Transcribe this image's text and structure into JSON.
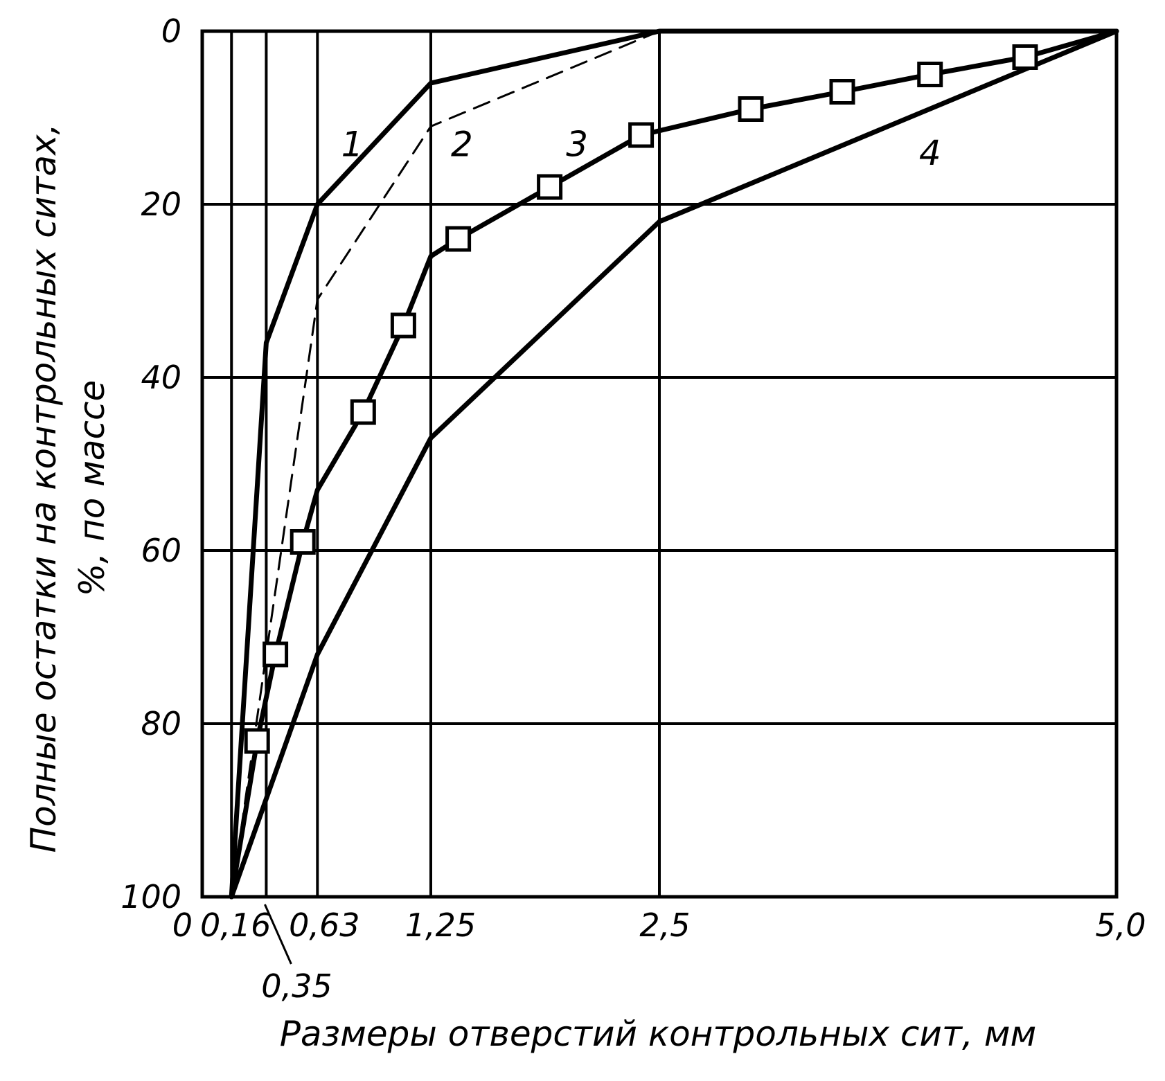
{
  "chart_data": {
    "type": "line",
    "xlabel": "Размеры отверстий контрольных сит, мм",
    "ylabel_line1": "Полные остатки на контрольных ситах,",
    "ylabel_line2": "%, по массе",
    "xlim": [
      0,
      5.0
    ],
    "ylim": [
      0,
      100
    ],
    "y_inverted": true,
    "grid": true,
    "x_ticks": [
      0,
      0.16,
      0.63,
      1.25,
      2.5,
      5.0
    ],
    "x_tick_labels": [
      "0",
      "0,16",
      "0,63",
      "1,25",
      "2,5",
      "5,0"
    ],
    "x_extra_label": {
      "x": 0.35,
      "text": "0,35"
    },
    "y_ticks": [
      0,
      20,
      40,
      60,
      80,
      100
    ],
    "y_tick_labels": [
      "0",
      "20",
      "40",
      "60",
      "80",
      "100"
    ],
    "series": [
      {
        "name": "1",
        "style": "solid",
        "label_at": [
          0.82,
          13
        ],
        "points": [
          [
            5.0,
            0
          ],
          [
            2.5,
            0
          ],
          [
            1.25,
            6
          ],
          [
            0.63,
            20
          ],
          [
            0.35,
            36
          ],
          [
            0.16,
            100
          ]
        ]
      },
      {
        "name": "2",
        "style": "dashed",
        "label_at": [
          1.42,
          13
        ],
        "points": [
          [
            2.5,
            0
          ],
          [
            1.25,
            11
          ],
          [
            0.63,
            31
          ],
          [
            0.35,
            72
          ],
          [
            0.16,
            100
          ]
        ]
      },
      {
        "name": "3",
        "style": "solid",
        "markers": "square",
        "label_at": [
          2.05,
          13
        ],
        "points": [
          [
            5.0,
            0
          ],
          [
            4.5,
            3
          ],
          [
            3.98,
            5
          ],
          [
            3.5,
            7
          ],
          [
            3.0,
            9
          ],
          [
            2.4,
            12
          ],
          [
            1.9,
            18
          ],
          [
            1.4,
            24
          ],
          [
            1.25,
            26
          ],
          [
            1.1,
            34
          ],
          [
            0.88,
            44
          ],
          [
            0.63,
            53
          ],
          [
            0.55,
            59
          ],
          [
            0.4,
            72
          ],
          [
            0.3,
            82
          ],
          [
            0.16,
            100
          ]
        ]
      },
      {
        "name": "4",
        "style": "solid",
        "label_at": [
          3.98,
          14
        ],
        "points": [
          [
            5.0,
            0
          ],
          [
            2.5,
            22
          ],
          [
            1.25,
            47
          ],
          [
            0.63,
            72
          ],
          [
            0.16,
            100
          ]
        ]
      }
    ]
  }
}
